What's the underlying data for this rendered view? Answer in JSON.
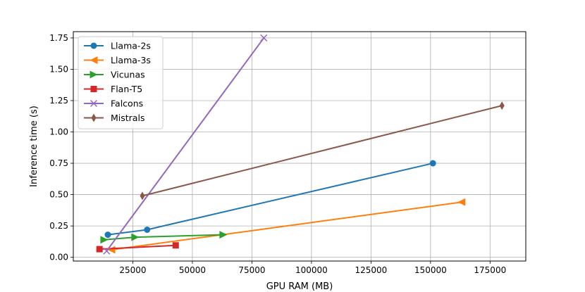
{
  "chart_data": {
    "type": "line",
    "title": "",
    "xlabel": "GPU RAM (MB)",
    "ylabel": "Inference time (s)",
    "xlim": [
      0,
      190000
    ],
    "ylim": [
      -0.03,
      1.8
    ],
    "x_ticks": [
      25000,
      50000,
      75000,
      100000,
      125000,
      150000,
      175000
    ],
    "x_tick_labels": [
      "25000",
      "50000",
      "75000",
      "100000",
      "125000",
      "150000",
      "175000"
    ],
    "y_ticks": [
      0.0,
      0.25,
      0.5,
      0.75,
      1.0,
      1.25,
      1.5,
      1.75
    ],
    "y_tick_labels": [
      "0.00",
      "0.25",
      "0.50",
      "0.75",
      "1.00",
      "1.25",
      "1.50",
      "1.75"
    ],
    "grid": true,
    "legend_position": "upper-left",
    "series": [
      {
        "name": "Llama-2s",
        "color": "#1f77b4",
        "marker": "circle",
        "x": [
          14500,
          31000,
          151000
        ],
        "y": [
          0.18,
          0.22,
          0.75
        ]
      },
      {
        "name": "Llama-3s",
        "color": "#ff7f0e",
        "marker": "triangle-left",
        "x": [
          16000,
          163000
        ],
        "y": [
          0.06,
          0.44
        ]
      },
      {
        "name": "Vicunas",
        "color": "#2ca02c",
        "marker": "triangle-right",
        "x": [
          13000,
          26000,
          63000
        ],
        "y": [
          0.14,
          0.16,
          0.18
        ]
      },
      {
        "name": "Flan-T5",
        "color": "#d62728",
        "marker": "square",
        "x": [
          11000,
          43000
        ],
        "y": [
          0.065,
          0.095
        ]
      },
      {
        "name": "Falcons",
        "color": "#9467bd",
        "marker": "x",
        "x": [
          14000,
          80000
        ],
        "y": [
          0.05,
          1.75
        ]
      },
      {
        "name": "Mistrals",
        "color": "#8c564b",
        "marker": "thin-diamond",
        "x": [
          29000,
          180000
        ],
        "y": [
          0.49,
          1.21
        ]
      }
    ]
  }
}
